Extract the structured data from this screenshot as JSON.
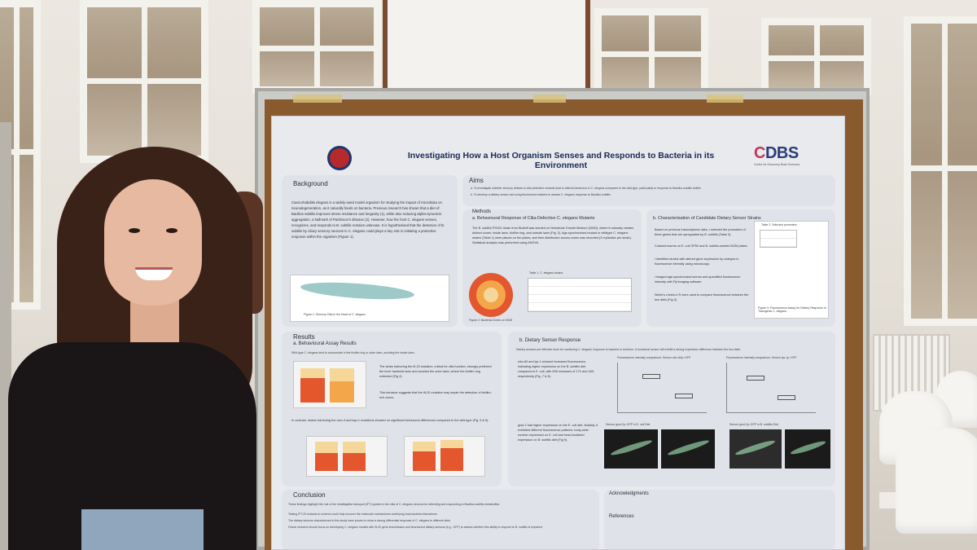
{
  "poster": {
    "title": "Investigating How a Host Organism Senses and Responds to Bacteria in its Environment",
    "logo_right": "CDBS",
    "logo_right_sub": "Centre for Discovery Brain Sciences",
    "background": {
      "heading": "Background",
      "text": "Caenorhabditis elegans is a widely-used model organism for studying the impact of microbiota on neurodegeneration, as it naturally feeds on bacteria. Previous research has shown that a diet of Bacillus subtilis improves stress resistance and longevity (1), while also reducing alpha-synuclein aggregation, a hallmark of Parkinson's disease (2). However, how the host C. elegans senses, recognizes, and responds to B. subtilis remains unknown. It is hypothesised that the detection of B. subtilis by ciliary sensory neurons in C. elegans could plays a key role in initiating a protective response within the organism (Figure 1).",
      "figure_caption": "Figure 1: Sensory Cilia in the Head of C. elegans"
    },
    "aims": {
      "heading": "Aims",
      "a": "a.  To investigate whether sensory defects in cilia-defective mutants lead to altered behaviour in C. elegans compared to the wild-type, particularly in response to Bacillus subtilis biofilm",
      "b": "b.  To develop a dietary sensor tool using fluorescent markers to assess C. elegans response to Bacillus subtilis"
    },
    "methods": {
      "heading": "Methods",
      "a_title": "a. Behavioural Response of Cilia-Defective C. elegans Mutants",
      "a_text": "The B. subtilis PXN21 strain from Biofloff was seeded on Nematode Growth Medium (NGM), where it naturally creates distinct zones: inside lawn, biofilm ring, and outside lawn (Fig. 2). Age-synchronised mutant or wildtype C. elegans strains (Table 1) were placed on the plates, and their distribution across zones was recorded (3 replicates per strain). Statistical analysis was performed using ANOVA.",
      "table_caption": "Table 1. C. elegans strains",
      "fig2_caption": "Figure 2: Bacterial Zones on NGM",
      "b_title": "b. Characterization of Candidate Dietary Sensor Strains",
      "b_points": [
        "Based on previous transcriptomic data, I selected the promoters of three genes that are upregulated by B. subtilis (Table 2).",
        "Cultured worms on E. coli OP50 and B. subtilis-seeded NGM plates.",
        "I identified strains with altered gene expression by changes in fluorescence intensity using microscopy.",
        "I imaged age-synchronized worms and quantified fluorescence intensity with Fiji imaging software.",
        "Welch's t-tests in R were used to compare fluorescence between the two diets (Fig 3)"
      ],
      "table2_caption": "Table 2. Selected promoters",
      "fig3_caption": "Figure 3: Fluorescence Assay for Dietary Response in Transgenic C. elegans"
    },
    "results": {
      "heading": "Results",
      "a_title": "a. Behavioural Assay Results",
      "a_intro": "Wild-type C. elegans tend to accumulate in the biofilm ring or outer lawn, avoiding the inside lawn.",
      "a_points": [
        "The strain harboring the ift-20 mutation, critical for cilia function, strongly preferred the inner bacterial lawn and avoided the outer lawn, where the biofilm ring extended (Fig 4)",
        "This behavior suggests that the ift-20 mutation may impair the detection of biofilm-rich zones."
      ],
      "a_more": "In contrast, strains harboring the osm-3 and kap-1 mutations showed no significant behavioral differences compared to the wild-type (Fig. 5 & 6).",
      "b_title": "b. Dietary Sensor Response",
      "b_intro": "Dietary sensors are effective tools for monitoring C. elegans' response to bacteria in real time. A functional sensor will exhibit a strong expression difference between the two diets.",
      "b_point1": "clec-60 and lys-1 showed increased fluorescence, indicating higher expression on the B. subtilis diet compared to E. coli, with 596 increases of 17X and 18X, respectively (Fig. 7 & 8).",
      "b_point2": "grsd-2 had higher expression on the E. coli diet. Notably, it exhibited different fluorescence patterns: body-wide nuclear expression on E. coli and head-localized expression on B. subtilis diet (Fig 9).",
      "sensor_label_1": "Sensor grsd-2p::GFP in E. coli Diet",
      "sensor_label_2": "Sensor grsd-2p::GFP in B. subtilis Diet",
      "plot_title_1": "Fluorescence intensity comparison: Sensor clec-60p::GFP",
      "plot_title_2": "Fluorescence intensity comparison: Sensor lys-1p::GFP"
    },
    "conclusion": {
      "heading": "Conclusion",
      "points": [
        "These findings highlight the role of the intraflagellar transport (IFT) system in the cilia of C. elegans neurons for detecting and responding to Bacillus subtilis metabolites.",
        "Testing IFT-20 mutants in screens could help uncover the molecular mechanisms underlying host-bacteria interactions.",
        "The dietary sensors characterized in this study have proven to show a strong differential response of C. elegans to different diets.",
        "Future research should focus on developing C. elegans models with ift-20 gene knockdowns and fluorescent dietary sensors (e.g., GFP) to assess whether this ability to respond to B. subtilis is impaired."
      ]
    },
    "acknowledgments": {
      "heading": "Acknowledgments",
      "references_heading": "References"
    }
  },
  "colors": {
    "poster_bg": "#e9eaee",
    "panel_bg": "#dfe2e8",
    "title": "#1a2a55",
    "bar_red": "#e4572e",
    "bar_orange": "#f3a64a",
    "bar_tan": "#f6d79a"
  }
}
